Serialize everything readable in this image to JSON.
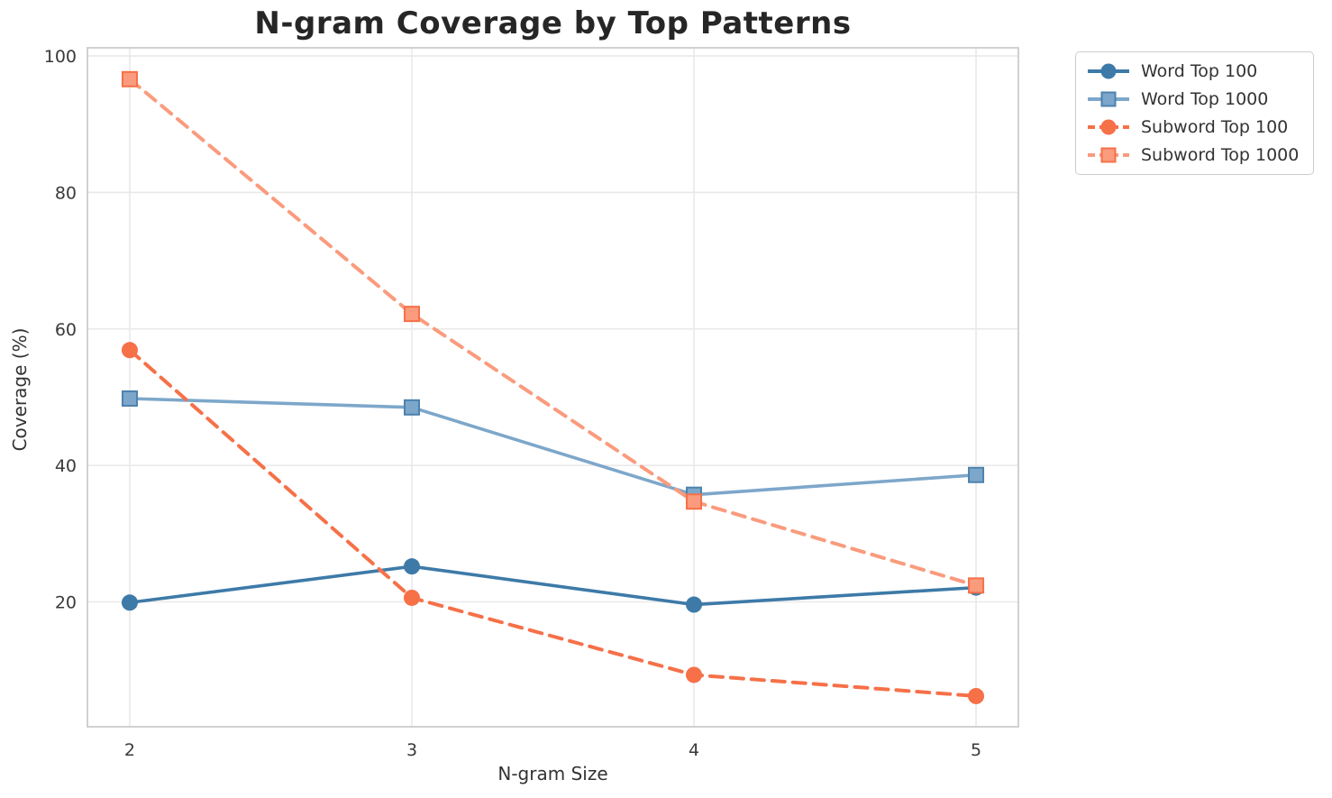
{
  "chart_data": {
    "type": "line",
    "title": "N-gram Coverage by Top Patterns",
    "xlabel": "N-gram Size",
    "ylabel": "Coverage (%)",
    "x": [
      2,
      3,
      4,
      5
    ],
    "xticks": [
      "2",
      "3",
      "4",
      "5"
    ],
    "yticks": [
      20,
      40,
      60,
      80,
      100
    ],
    "xlim": [
      1.85,
      5.15
    ],
    "ylim": [
      1.7,
      101.2
    ],
    "grid": true,
    "legend_position": "upper-right-outside",
    "series": [
      {
        "name": "Word Top 100",
        "values": [
          19.9,
          25.2,
          19.6,
          22.1
        ],
        "color": "#3d7aa8",
        "line_style": "solid",
        "marker": "circle"
      },
      {
        "name": "Word Top 1000",
        "values": [
          49.8,
          48.5,
          35.7,
          38.6
        ],
        "color": "#7da7ca",
        "marker_edge": "#4d82ad",
        "line_style": "solid",
        "marker": "square"
      },
      {
        "name": "Subword Top 100",
        "values": [
          56.9,
          20.6,
          9.3,
          6.2
        ],
        "color": "#f67048",
        "line_style": "dashed",
        "marker": "circle"
      },
      {
        "name": "Subword Top 1000",
        "values": [
          96.6,
          62.2,
          34.7,
          22.4
        ],
        "color": "#fa9b7d",
        "marker_edge": "#f67048",
        "line_style": "dashed",
        "marker": "square"
      }
    ]
  },
  "colors": {
    "background": "#ffffff",
    "grid": "#e9e9e9",
    "spine": "#cccccc",
    "title": "#262626",
    "tick_label": "#3a3a3a",
    "legend_border": "#cccccc"
  }
}
